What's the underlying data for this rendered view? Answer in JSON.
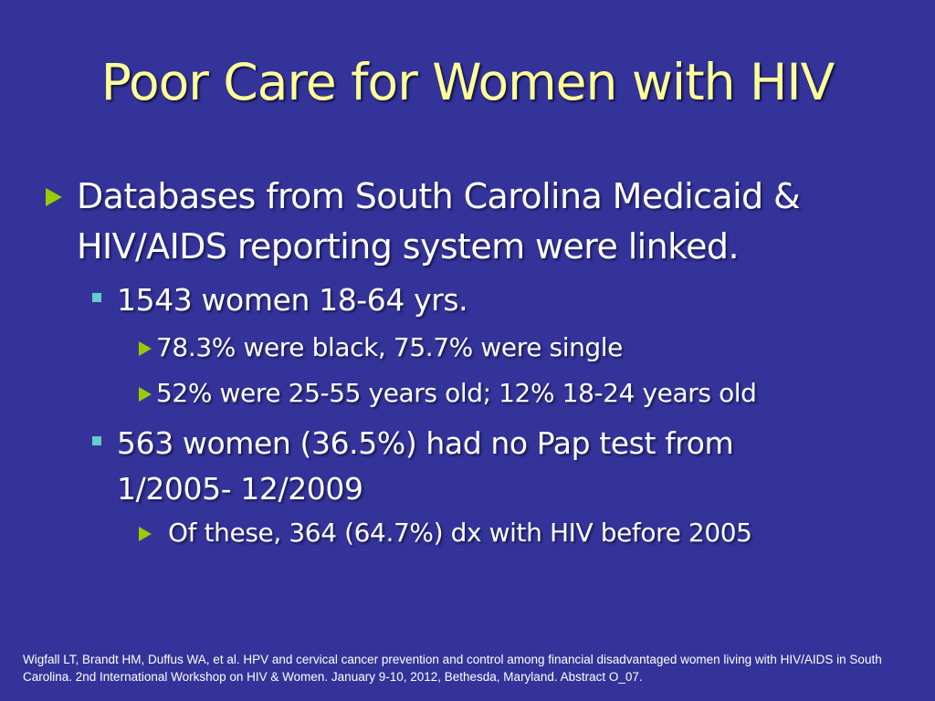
{
  "slide": {
    "title": "Poor Care for Women with HIV",
    "bullets": {
      "b1_line1": "Databases from South Carolina Medicaid &",
      "b1_line2": "HIV/AIDS reporting system were linked.",
      "b2": "1543 women 18-64 yrs.",
      "b2_sub1": "78.3% were black, 75.7% were single",
      "b2_sub2": "52% were 25-55 years old; 12% 18-24 years old",
      "b3_line1": "563 women (36.5%) had no Pap test from",
      "b3_line2": "1/2005- 12/2009",
      "b3_sub1": "Of these, 364 (64.7%) dx with HIV before 2005"
    },
    "citation": "Wigfall LT, Brandt HM, Duffus WA, et al. HPV and cervical cancer prevention and control among financial disadvantaged women living with HIV/AIDS in South Carolina. 2nd International Workshop on HIV & Women. January 9-10, 2012, Bethesda, Maryland. Abstract O_07."
  },
  "colors": {
    "background": "#333399",
    "title": "#FFFF99",
    "body_text": "#FFFFFF",
    "arrow_bullet": "#99CC00",
    "square_bullet": "#66CCCC"
  },
  "icons": {
    "level1_bullet": "triangle-arrow-icon",
    "level2_bullet": "square-bullet-icon",
    "level3_bullet": "triangle-arrow-icon"
  }
}
